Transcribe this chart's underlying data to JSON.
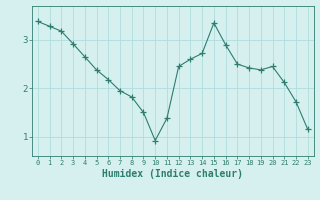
{
  "x": [
    0,
    1,
    2,
    3,
    4,
    5,
    6,
    7,
    8,
    9,
    10,
    11,
    12,
    13,
    14,
    15,
    16,
    17,
    18,
    19,
    20,
    21,
    22,
    23
  ],
  "y": [
    3.38,
    3.28,
    3.18,
    2.92,
    2.65,
    2.38,
    2.18,
    1.95,
    1.82,
    1.5,
    0.92,
    1.38,
    2.45,
    2.6,
    2.72,
    3.35,
    2.9,
    2.5,
    2.42,
    2.38,
    2.45,
    2.12,
    1.72,
    1.15
  ],
  "line_color": "#2e7d6e",
  "marker": "+",
  "marker_size": 4,
  "bg_color": "#d6f0f0",
  "grid_color": "#b0dede",
  "tick_color": "#2e7d6e",
  "xlabel": "Humidex (Indice chaleur)",
  "xlabel_fontsize": 7,
  "yticks": [
    1,
    2,
    3
  ],
  "ylim": [
    0.6,
    3.7
  ],
  "xlim": [
    -0.5,
    23.5
  ],
  "xtick_labels": [
    "0",
    "1",
    "2",
    "3",
    "4",
    "5",
    "6",
    "7",
    "8",
    "9",
    "10",
    "11",
    "12",
    "13",
    "14",
    "15",
    "16",
    "17",
    "18",
    "19",
    "20",
    "21",
    "22",
    "23"
  ]
}
